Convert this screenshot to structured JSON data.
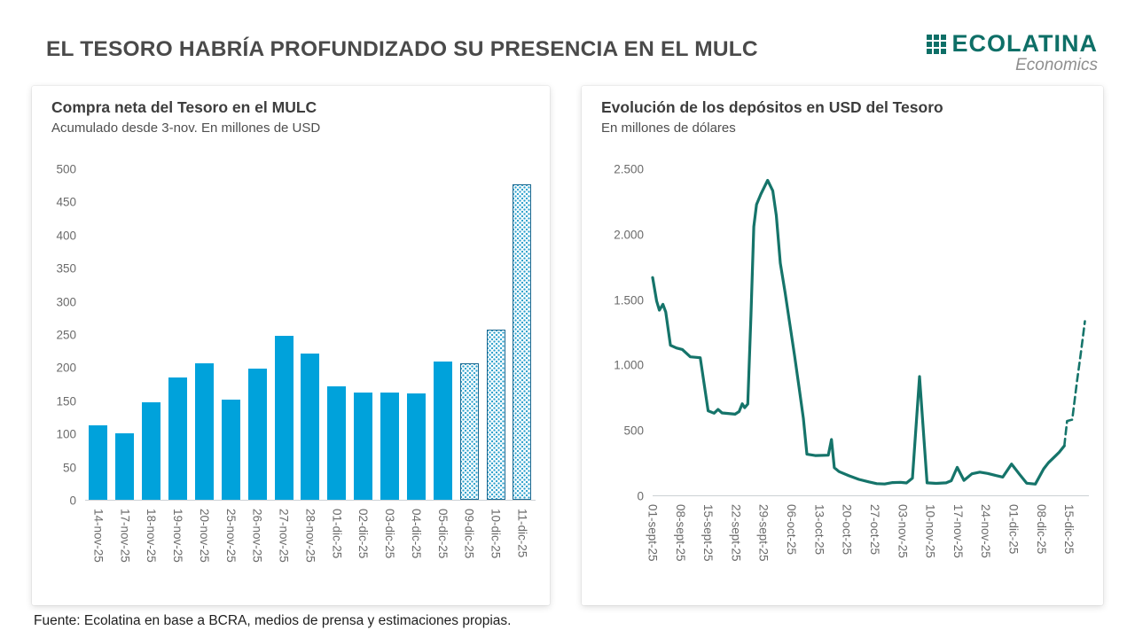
{
  "header": {
    "title": "EL TESORO HABRÍA PROFUNDIZADO SU PRESENCIA EN EL MULC",
    "logo_name": "ECOLATINA",
    "logo_tagline": "Economics"
  },
  "footer": {
    "source": "Fuente: Ecolatina en base a BCRA, medios de prensa y estimaciones propias."
  },
  "colors": {
    "bar_solid": "#00a2db",
    "bar_estimated_border": "#1a6890",
    "bar_estimated_dot": "#2ba0cc",
    "line": "#15746a",
    "logo_teal": "#0e6f67"
  },
  "chart_data": [
    {
      "type": "bar",
      "title": "Compra neta del Tesoro en el MULC",
      "subtitle": "Acumulado desde 3-nov. En millones de USD",
      "categories": [
        "14-nov-25",
        "17-nov-25",
        "18-nov-25",
        "19-nov-25",
        "20-nov-25",
        "25-nov-25",
        "26-nov-25",
        "27-nov-25",
        "28-nov-25",
        "01-dic-25",
        "02-dic-25",
        "03-dic-25",
        "04-dic-25",
        "05-dic-25",
        "09-dic-25",
        "10-dic-25",
        "11-dic-25"
      ],
      "values": [
        112,
        100,
        148,
        185,
        207,
        152,
        198,
        248,
        221,
        172,
        162,
        162,
        161,
        209,
        207,
        257,
        477
      ],
      "estimated": [
        false,
        false,
        false,
        false,
        false,
        false,
        false,
        false,
        false,
        false,
        false,
        false,
        false,
        false,
        true,
        true,
        true
      ],
      "ylim": [
        0,
        500
      ],
      "yticks": [
        [
          500,
          "500"
        ],
        [
          450,
          "450"
        ],
        [
          400,
          "400"
        ],
        [
          350,
          "350"
        ],
        [
          300,
          "300"
        ],
        [
          250,
          "250"
        ],
        [
          200,
          "200"
        ],
        [
          150,
          "150"
        ],
        [
          100,
          "100"
        ],
        [
          50,
          "50"
        ],
        [
          0,
          "0"
        ]
      ],
      "grid": false,
      "legend": "none"
    },
    {
      "type": "line",
      "title": "Evolución de los depósitos en USD del Tesoro",
      "subtitle": "En millones de dólares",
      "ylim": [
        0,
        2500
      ],
      "yticks": [
        [
          2500,
          "2.500"
        ],
        [
          2000,
          "2.000"
        ],
        [
          1500,
          "1.500"
        ],
        [
          1000,
          "1.000"
        ],
        [
          500,
          "500"
        ],
        [
          0,
          "0"
        ]
      ],
      "x_domain": [
        0,
        110
      ],
      "x_tick_days": [
        0,
        7,
        14,
        21,
        28,
        35,
        42,
        49,
        56,
        63,
        70,
        77,
        84,
        91,
        98,
        105
      ],
      "x_tick_labels": [
        "01-sept-25",
        "08-sept-25",
        "15-sept-25",
        "22-sept-25",
        "29-sept-25",
        "06-oct-25",
        "13-oct-25",
        "20-oct-25",
        "27-oct-25",
        "03-nov-25",
        "10-nov-25",
        "17-nov-25",
        "24-nov-25",
        "01-dic-25",
        "08-dic-25",
        "15-dic-25"
      ],
      "grid": false,
      "legend": "none",
      "series": [
        {
          "name": "depositos-observado",
          "style": "solid",
          "points": [
            [
              0,
              1670
            ],
            [
              1,
              1490
            ],
            [
              1.7,
              1420
            ],
            [
              2.6,
              1465
            ],
            [
              3.3,
              1405
            ],
            [
              4.5,
              1150
            ],
            [
              6,
              1130
            ],
            [
              7.5,
              1118
            ],
            [
              8.5,
              1090
            ],
            [
              9.5,
              1062
            ],
            [
              12,
              1055
            ],
            [
              14,
              648
            ],
            [
              15.5,
              630
            ],
            [
              16.5,
              658
            ],
            [
              17.5,
              632
            ],
            [
              19,
              628
            ],
            [
              20.8,
              622
            ],
            [
              21.8,
              642
            ],
            [
              22.6,
              702
            ],
            [
              23.2,
              672
            ],
            [
              24,
              700
            ],
            [
              24.8,
              1380
            ],
            [
              25.5,
              2060
            ],
            [
              26.2,
              2230
            ],
            [
              27.3,
              2310
            ],
            [
              29,
              2415
            ],
            [
              30.3,
              2335
            ],
            [
              31.2,
              2145
            ],
            [
              32.2,
              1780
            ],
            [
              33.4,
              1555
            ],
            [
              34.6,
              1310
            ],
            [
              35.8,
              1070
            ],
            [
              36.9,
              835
            ],
            [
              38,
              590
            ],
            [
              38.9,
              315
            ],
            [
              41,
              305
            ],
            [
              44.3,
              308
            ],
            [
              45.1,
              428
            ],
            [
              45.8,
              212
            ],
            [
              47,
              182
            ],
            [
              49.5,
              150
            ],
            [
              52,
              122
            ],
            [
              54.5,
              103
            ],
            [
              56.5,
              90
            ],
            [
              58.5,
              87
            ],
            [
              60.5,
              98
            ],
            [
              62.5,
              100
            ],
            [
              64,
              95
            ],
            [
              65.5,
              132
            ],
            [
              67.3,
              910
            ],
            [
              69.2,
              96
            ],
            [
              71.5,
              92
            ],
            [
              74,
              96
            ],
            [
              75.3,
              112
            ],
            [
              76.8,
              215
            ],
            [
              78.5,
              115
            ],
            [
              80.5,
              165
            ],
            [
              82.5,
              178
            ],
            [
              84.5,
              168
            ],
            [
              86.5,
              152
            ],
            [
              88.3,
              140
            ],
            [
              90.5,
              240
            ],
            [
              92.5,
              162
            ],
            [
              94.3,
              93
            ],
            [
              96.5,
              86
            ],
            [
              98.6,
              203
            ],
            [
              99.8,
              250
            ],
            [
              101.5,
              300
            ],
            [
              102.5,
              330
            ],
            [
              103.8,
              380
            ]
          ]
        },
        {
          "name": "depositos-proyeccion",
          "style": "dashed",
          "points": [
            [
              103.8,
              380
            ],
            [
              104.5,
              570
            ],
            [
              105.8,
              580
            ],
            [
              107,
              875
            ],
            [
              108,
              1100
            ],
            [
              109,
              1335
            ]
          ]
        }
      ]
    }
  ]
}
